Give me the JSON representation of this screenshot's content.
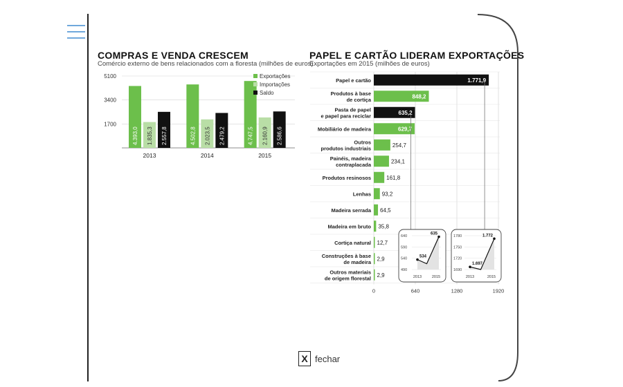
{
  "close_label": "fechar",
  "close_x": "X",
  "chart_data": [
    {
      "type": "bar",
      "title": "COMPRAS E VENDA CRESCEM",
      "subtitle": "Comércio externo de bens relacionados com a floresta (milhões de euros)",
      "categories": [
        "2013",
        "2014",
        "2015"
      ],
      "y_ticks": [
        "5100",
        "3400",
        "1700"
      ],
      "ylim": [
        0,
        5100
      ],
      "legend_position": "top-right",
      "series": [
        {
          "name": "Exportações",
          "color": "#6cbf4b",
          "values": [
            4393.0,
            4502.8,
            4747.5
          ],
          "labels": [
            "4.393,0",
            "4.502,8",
            "4.747,5"
          ]
        },
        {
          "name": "Importações",
          "color": "#b9dea6",
          "values": [
            1835.3,
            2023.5,
            2160.9
          ],
          "labels": [
            "1.835,3",
            "2.023,5",
            "2.160,9"
          ]
        },
        {
          "name": "Saldo",
          "color": "#111111",
          "values": [
            2557.8,
            2479.2,
            2586.6
          ],
          "labels": [
            "2.557,8",
            "2.479,2",
            "2.586,6"
          ]
        }
      ]
    },
    {
      "type": "bar",
      "orientation": "horizontal",
      "title": "PAPEL E CARTÃO LIDERAM EXPORTAÇÕES",
      "subtitle": "Exportações em 2015 (milhões de euros)",
      "categories": [
        [
          "Papel e cartão"
        ],
        [
          "Produtos à base",
          "de cortiça"
        ],
        [
          "Pasta de papel",
          "e papel para reciclar"
        ],
        [
          "Mobiliário de madeira"
        ],
        [
          "Outros",
          "produtos industriais"
        ],
        [
          "Painéis, madeira",
          "contraplacada"
        ],
        [
          "Produtos resinosos"
        ],
        [
          "Lenhas"
        ],
        [
          "Madeira serrada"
        ],
        [
          "Madeira em bruto"
        ],
        [
          "Cortiça natural"
        ],
        [
          "Construções à base",
          "de madeira"
        ],
        [
          "Outros materiais",
          "de origem florestal"
        ]
      ],
      "values": [
        1771.9,
        848.2,
        635.2,
        629.7,
        254.7,
        234.1,
        161.8,
        93.2,
        64.5,
        35.8,
        12.7,
        2.9,
        2.9
      ],
      "labels": [
        "1.771,9",
        "848,2",
        "635,2",
        "629,7",
        "254,7",
        "234,1",
        "161,8",
        "93,2",
        "64,5",
        "35,8",
        "12,7",
        "2,9",
        "2,9"
      ],
      "highlight_dark": [
        0,
        2
      ],
      "x_ticks": [
        "0",
        "640",
        "1280",
        "1920"
      ],
      "xlim": [
        0,
        1920
      ],
      "colors": {
        "green": "#6cbf4b",
        "dark": "#111111"
      }
    },
    {
      "type": "line",
      "context": "Pasta de papel e papel para reciclar",
      "x": [
        "2013",
        "2015"
      ],
      "y_ticks": [
        "640",
        "590",
        "540",
        "490"
      ],
      "ylim": [
        490,
        640
      ],
      "series": [
        {
          "values": [
            534,
            635
          ],
          "labels": [
            "534",
            "635"
          ]
        }
      ]
    },
    {
      "type": "line",
      "context": "Papel e cartão",
      "x": [
        "2013",
        "2015"
      ],
      "y_ticks": [
        "1780",
        "1750",
        "1720",
        "1690"
      ],
      "ylim": [
        1690,
        1780
      ],
      "series": [
        {
          "values": [
            1697,
            1772
          ],
          "labels": [
            "1.697",
            "1.772"
          ]
        }
      ]
    }
  ]
}
